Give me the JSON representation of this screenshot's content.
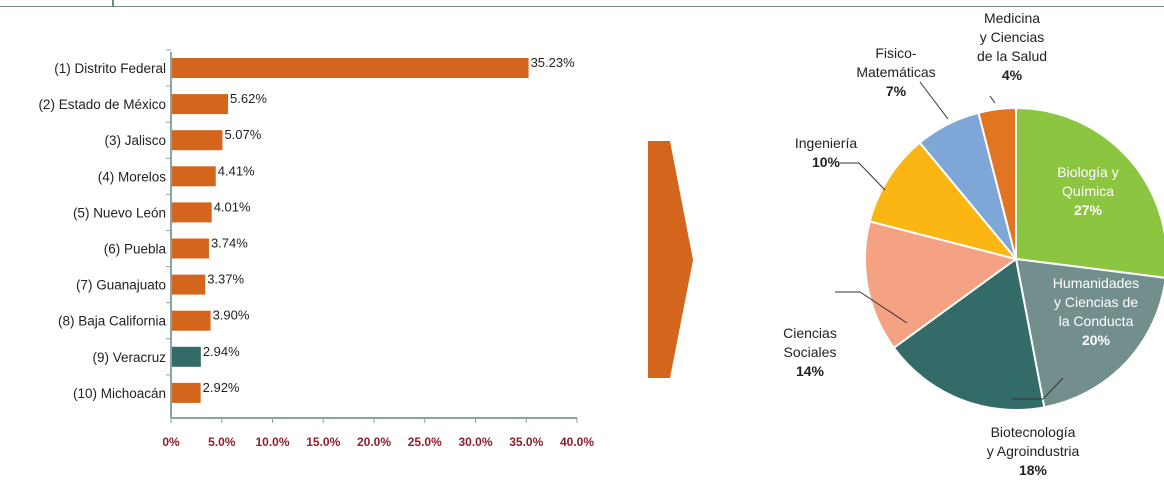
{
  "chart_data": [
    {
      "type": "bar",
      "orientation": "horizontal",
      "categories": [
        "(1) Distrito Federal",
        "(2) Estado de México",
        "(3) Jalisco",
        "(4) Morelos",
        "(5) Nuevo León",
        "(6) Puebla",
        "(7) Guanajuato",
        "(8) Baja California",
        "(9) Veracruz",
        "(10) Michoacán"
      ],
      "values": [
        35.23,
        5.62,
        5.07,
        4.41,
        4.01,
        3.74,
        3.37,
        3.9,
        2.94,
        2.92
      ],
      "value_labels": [
        "35.23%",
        "5.62%",
        "5.07%",
        "4.41%",
        "4.01%",
        "3.74%",
        "3.37%",
        "3.90%",
        "2.94%",
        "2.92%"
      ],
      "x_ticks": [
        "0%",
        "5.0%",
        "10.0%",
        "15.0%",
        "20.0%",
        "25.0%",
        "30.0%",
        "35.0%",
        "40.0%"
      ],
      "xlim": [
        0,
        40
      ],
      "bar_color": "#d4651c",
      "highlight_color": "#336b68",
      "highlight_index": 8,
      "tick_color": "#8b1f2b",
      "grid": false
    },
    {
      "type": "pie",
      "slices": [
        {
          "label": "Biología y Química",
          "lines": [
            "Biología y",
            "Química"
          ],
          "value": 27,
          "pct": "27%",
          "color": "#8cc540",
          "label_color": "#ffffff"
        },
        {
          "label": "Humanidades y Ciencias de la Conducta",
          "lines": [
            "Humanidades",
            "y Ciencias de",
            "la Conducta"
          ],
          "value": 20,
          "pct": "20%",
          "color": "#738f8d",
          "label_color": "#ffffff"
        },
        {
          "label": "Biotecnología y Agroindustria",
          "lines": [
            "Biotecnología",
            "y Agroindustria"
          ],
          "value": 18,
          "pct": "18%",
          "color": "#336b68",
          "label_color": "#222222"
        },
        {
          "label": "Ciencias Sociales",
          "lines": [
            "Ciencias",
            "Sociales"
          ],
          "value": 14,
          "pct": "14%",
          "color": "#f4a283",
          "label_color": "#222222"
        },
        {
          "label": "Ingeniería",
          "lines": [
            "Ingeniería"
          ],
          "value": 10,
          "pct": "10%",
          "color": "#fbb614",
          "label_color": "#222222"
        },
        {
          "label": "Fisico-Matemáticas",
          "lines": [
            "Fisico-",
            "Matemáticas"
          ],
          "value": 7,
          "pct": "7%",
          "color": "#7ea7d8",
          "label_color": "#222222"
        },
        {
          "label": "Medicina y Ciencias de la Salud",
          "lines": [
            "Medicina",
            "y Ciencias",
            "de la Salud"
          ],
          "value": 4,
          "pct": "4%",
          "color": "#e17522",
          "label_color": "#222222"
        }
      ]
    }
  ],
  "arrow_color": "#d4651c"
}
